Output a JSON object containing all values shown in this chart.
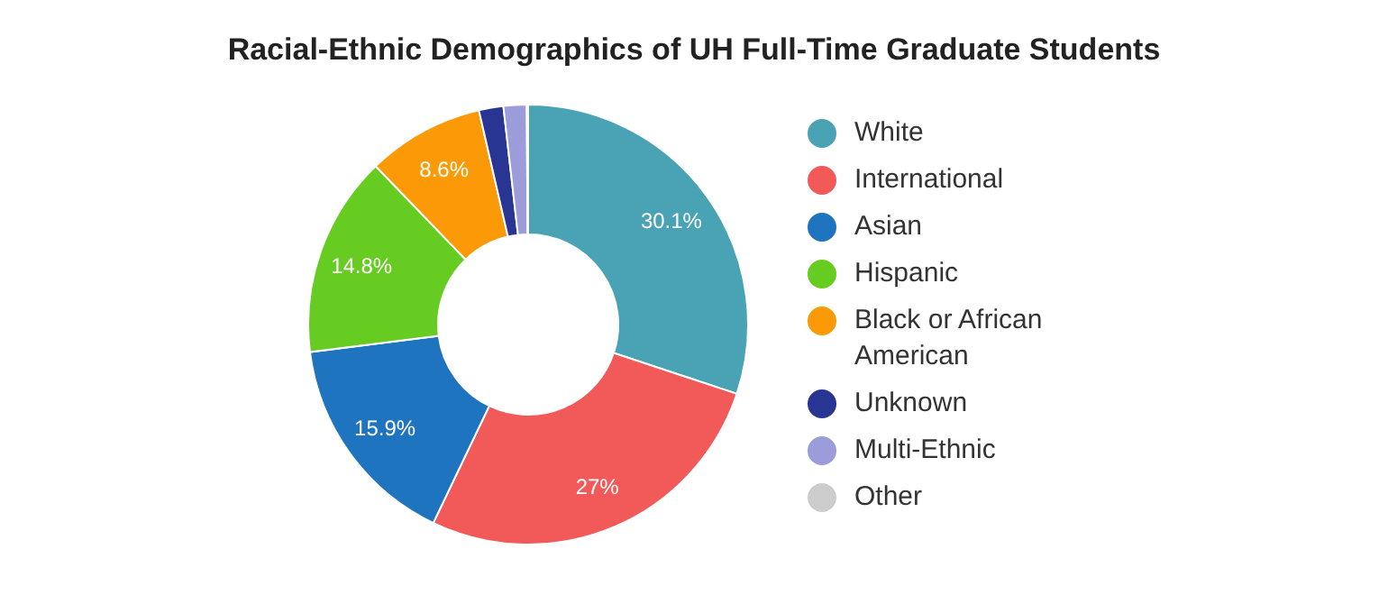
{
  "chart_data": {
    "type": "donut",
    "title": "Racial-Ethnic Demographics of UH Full-Time Graduate Students",
    "categories": [
      "White",
      "International",
      "Asian",
      "Hispanic",
      "Black or African American",
      "Unknown",
      "Multi-Ethnic",
      "Other"
    ],
    "values": [
      30.1,
      27,
      15.9,
      14.8,
      8.6,
      1.8,
      1.7,
      0.1
    ],
    "colors": [
      "#4aa3b5",
      "#f25a5a",
      "#1f74c0",
      "#66cc22",
      "#fb9a06",
      "#283593",
      "#9c9cdb",
      "#cccccc"
    ],
    "value_labels": [
      "30.1%",
      "27%",
      "15.9%",
      "14.8%",
      "8.6%",
      null,
      null,
      null
    ],
    "legend": "right"
  }
}
